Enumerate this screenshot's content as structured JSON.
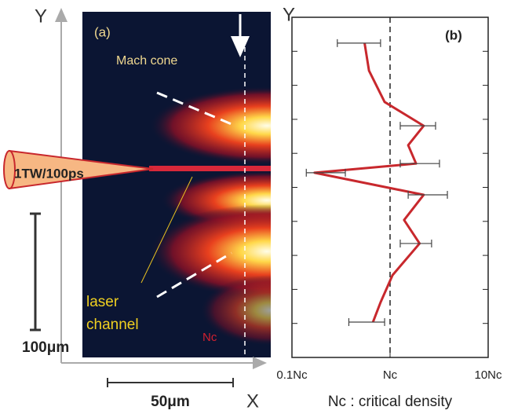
{
  "panel_a": {
    "label": "(a)",
    "y_axis": "Y",
    "x_axis": "X",
    "mach_cone": "Mach cone",
    "laser": "1TW/100ps",
    "laser_channel": [
      "laser",
      "channel"
    ],
    "nc": "Nc",
    "scale_y": "100μm",
    "scale_x": "50μm"
  },
  "chart_data": {
    "type": "line",
    "label": "(b)",
    "y_label": "Y",
    "caption": "Nc : critical density",
    "xscale": "log",
    "color": "#c8282d",
    "x": [
      0.55,
      0.61,
      0.88,
      2.2,
      1.53,
      1.84,
      0.17,
      2.2,
      1.39,
      2.0,
      1.06,
      0.8,
      0.67
    ],
    "y": [
      92.4,
      84.3,
      75.1,
      68.1,
      62.4,
      57.0,
      54.3,
      47.8,
      40.4,
      33.5,
      24.2,
      16.2,
      10.4
    ],
    "x_error": [
      [
        0.29,
        0.8
      ],
      null,
      null,
      [
        1.27,
        2.91
      ],
      null,
      [
        1.27,
        3.19
      ],
      [
        0.14,
        0.35
      ],
      [
        1.53,
        3.84
      ],
      null,
      [
        1.27,
        2.65
      ],
      null,
      null,
      [
        0.38,
        0.88
      ]
    ],
    "xlim": [
      0.1,
      10
    ],
    "ylim": [
      0,
      100
    ],
    "xticks": [
      {
        "value": 0.1,
        "label": "0.1Nc"
      },
      {
        "value": 1,
        "label": "Nc"
      },
      {
        "value": 10,
        "label": "10Nc"
      }
    ],
    "yticks": [
      10,
      20,
      30,
      40,
      50,
      60,
      70,
      80,
      90
    ]
  }
}
